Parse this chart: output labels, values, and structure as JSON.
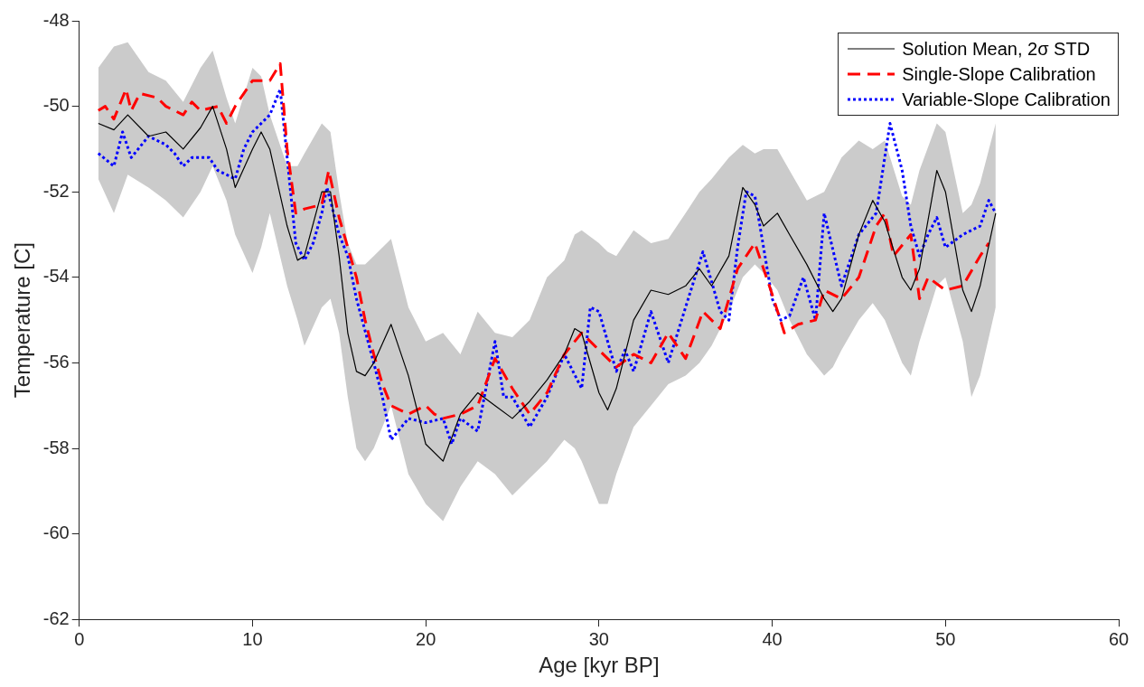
{
  "chart_data": {
    "type": "line",
    "xlabel": "Age [kyr BP]",
    "ylabel": "Temperature [C]",
    "xlim": [
      0,
      60
    ],
    "xticks": [
      0,
      10,
      20,
      30,
      40,
      50,
      60
    ],
    "ylim": [
      -62,
      -48
    ],
    "yticks": [
      -62,
      -60,
      -58,
      -56,
      -54,
      -52,
      -50,
      -48
    ],
    "grid": false,
    "legend": "top right",
    "marker": "none",
    "series": [
      {
        "name": "Solution Mean, 2σ STD",
        "color": "#000000",
        "line_style": "solid",
        "x": [
          1.1,
          2,
          2.8,
          4,
          5,
          6,
          7,
          7.7,
          8.5,
          9,
          10,
          10.5,
          11,
          12,
          12.6,
          13,
          14,
          14.5,
          15,
          15.5,
          16,
          16.5,
          17,
          18,
          19,
          20,
          21,
          22,
          23,
          24,
          25,
          26,
          27,
          28,
          28.6,
          29,
          30,
          30.5,
          31,
          32,
          33,
          34,
          35,
          35.8,
          36.5,
          37.5,
          38.3,
          39,
          39.5,
          40.3,
          41,
          42,
          43,
          43.5,
          44,
          45,
          45.8,
          46.5,
          47.5,
          48,
          48.5,
          49.5,
          50,
          51,
          51.5,
          52,
          52.9
        ],
        "values": [
          -50.4,
          -50.55,
          -50.2,
          -50.7,
          -50.6,
          -51.0,
          -50.5,
          -50.0,
          -51.0,
          -51.9,
          -51.0,
          -50.6,
          -51.0,
          -52.8,
          -53.6,
          -53.5,
          -52.0,
          -52.0,
          -53.5,
          -55.3,
          -56.2,
          -56.3,
          -56.0,
          -55.1,
          -56.3,
          -57.9,
          -58.3,
          -57.2,
          -56.7,
          -57.0,
          -57.3,
          -56.9,
          -56.4,
          -55.8,
          -55.2,
          -55.3,
          -56.7,
          -57.1,
          -56.6,
          -55.0,
          -54.3,
          -54.4,
          -54.2,
          -53.8,
          -54.2,
          -53.5,
          -51.9,
          -52.3,
          -52.8,
          -52.5,
          -53.0,
          -53.7,
          -54.5,
          -54.8,
          -54.5,
          -53.0,
          -52.2,
          -52.7,
          -54.0,
          -54.3,
          -53.8,
          -51.5,
          -52.0,
          -54.3,
          -54.8,
          -54.2,
          -52.5
        ],
        "upper": [
          -49.1,
          -48.6,
          -48.5,
          -49.2,
          -49.4,
          -49.9,
          -49.1,
          -48.7,
          -49.8,
          -50.4,
          -49.1,
          -49.3,
          -50.2,
          -51.4,
          -51.4,
          -51.1,
          -50.4,
          -50.6,
          -52.0,
          -53.2,
          -53.7,
          -53.7,
          -53.5,
          -53.1,
          -54.7,
          -55.5,
          -55.3,
          -55.8,
          -54.8,
          -55.3,
          -55.4,
          -55.0,
          -54.0,
          -53.6,
          -53.0,
          -52.9,
          -53.2,
          -53.4,
          -53.5,
          -52.9,
          -53.2,
          -53.1,
          -52.5,
          -52.0,
          -51.7,
          -51.2,
          -50.9,
          -51.1,
          -51.0,
          -51.0,
          -51.5,
          -52.2,
          -52.0,
          -51.6,
          -51.2,
          -50.8,
          -51.0,
          -50.8,
          -52.1,
          -52.3,
          -51.5,
          -50.4,
          -50.6,
          -52.5,
          -52.3,
          -51.8,
          -50.4
        ],
        "lower": [
          -51.7,
          -52.5,
          -51.6,
          -51.9,
          -52.2,
          -52.6,
          -52.0,
          -51.4,
          -52.2,
          -53.0,
          -53.9,
          -53.3,
          -52.5,
          -54.2,
          -55.0,
          -55.6,
          -54.7,
          -54.5,
          -55.3,
          -56.8,
          -58.0,
          -58.3,
          -58.0,
          -57.0,
          -58.6,
          -59.3,
          -59.7,
          -58.9,
          -58.3,
          -58.6,
          -59.1,
          -58.7,
          -58.3,
          -57.8,
          -58.0,
          -58.3,
          -59.3,
          -59.3,
          -58.6,
          -57.5,
          -57.0,
          -56.5,
          -56.3,
          -56.0,
          -55.6,
          -54.8,
          -54.0,
          -53.7,
          -53.9,
          -54.3,
          -55.0,
          -55.8,
          -56.3,
          -56.1,
          -55.7,
          -55.0,
          -54.6,
          -55.0,
          -56.0,
          -56.3,
          -55.5,
          -54.2,
          -54.0,
          -55.5,
          -56.8,
          -56.3,
          -54.7
        ]
      },
      {
        "name": "Single-Slope Calibration",
        "color": "#ff0000",
        "line_style": "dashed",
        "x": [
          1.1,
          1.5,
          2,
          2.7,
          3,
          3.5,
          4.5,
          5,
          6,
          6.5,
          7,
          8,
          8.5,
          9,
          10,
          11,
          11.6,
          12,
          12.5,
          13,
          14,
          14.4,
          15,
          15.5,
          16,
          16.5,
          17,
          17.5,
          18,
          19,
          20,
          20.5,
          21,
          22,
          23,
          24,
          25,
          26,
          27,
          28,
          29,
          30,
          31,
          32,
          33,
          34,
          35,
          36,
          37,
          38,
          39,
          40,
          40.7,
          41.5,
          42.5,
          43,
          44,
          45,
          46,
          46.5,
          47,
          48,
          48.5,
          49,
          50,
          51,
          52,
          52.5
        ],
        "values": [
          -50.1,
          -50.0,
          -50.3,
          -49.6,
          -50.1,
          -49.7,
          -49.8,
          -50.0,
          -50.2,
          -49.9,
          -50.1,
          -50.0,
          -50.4,
          -50.0,
          -49.4,
          -49.4,
          -49.0,
          -51.0,
          -52.5,
          -52.4,
          -52.3,
          -51.5,
          -52.6,
          -53.3,
          -54.0,
          -55.0,
          -55.8,
          -56.5,
          -57.0,
          -57.2,
          -57.0,
          -57.2,
          -57.3,
          -57.2,
          -57.0,
          -55.9,
          -56.6,
          -57.2,
          -56.7,
          -55.8,
          -55.3,
          -55.7,
          -56.1,
          -55.8,
          -56.0,
          -55.3,
          -55.9,
          -54.8,
          -55.2,
          -53.8,
          -53.2,
          -54.4,
          -55.3,
          -55.1,
          -55.0,
          -54.3,
          -54.5,
          -54.0,
          -52.8,
          -52.5,
          -53.5,
          -53.0,
          -54.5,
          -54.0,
          -54.3,
          -54.2,
          -53.5,
          -53.2
        ]
      },
      {
        "name": "Variable-Slope Calibration",
        "color": "#0000ff",
        "line_style": "dotted",
        "x": [
          1.1,
          2,
          2.5,
          3,
          4,
          5,
          5.5,
          6,
          6.5,
          7.5,
          8,
          9,
          9.5,
          10,
          11,
          11.6,
          12,
          12.5,
          13,
          13.5,
          14,
          14.3,
          15,
          15.5,
          16,
          17,
          17.5,
          18,
          19,
          20,
          21,
          21.5,
          22,
          23,
          24,
          24.5,
          25,
          26,
          27,
          28,
          29,
          29.5,
          30,
          31,
          31.5,
          32,
          33,
          34,
          35,
          36,
          37,
          37.5,
          38,
          38.5,
          39,
          40,
          40.5,
          41,
          41.8,
          42.5,
          43,
          44,
          45,
          46,
          46.8,
          47.5,
          48,
          48.5,
          49,
          49.5,
          50,
          51,
          52,
          52.5,
          52.9
        ],
        "values": [
          -51.1,
          -51.4,
          -50.6,
          -51.2,
          -50.7,
          -50.9,
          -51.1,
          -51.4,
          -51.2,
          -51.2,
          -51.5,
          -51.7,
          -51.0,
          -50.6,
          -50.2,
          -49.6,
          -51.2,
          -53.2,
          -53.6,
          -53.2,
          -52.5,
          -51.9,
          -53.0,
          -53.5,
          -54.5,
          -56.0,
          -56.8,
          -57.8,
          -57.3,
          -57.4,
          -57.3,
          -57.9,
          -57.3,
          -57.6,
          -55.5,
          -56.8,
          -56.8,
          -57.5,
          -56.8,
          -55.8,
          -56.6,
          -54.7,
          -54.8,
          -56.2,
          -55.7,
          -56.2,
          -54.8,
          -56.0,
          -54.7,
          -53.4,
          -54.8,
          -55.0,
          -53.3,
          -52.0,
          -52.1,
          -54.5,
          -55.0,
          -54.9,
          -54.0,
          -55.0,
          -52.5,
          -54.2,
          -53.0,
          -52.5,
          -50.4,
          -51.5,
          -52.8,
          -53.5,
          -53.0,
          -52.6,
          -53.3,
          -53.0,
          -52.8,
          -52.2,
          -52.5
        ]
      }
    ]
  }
}
